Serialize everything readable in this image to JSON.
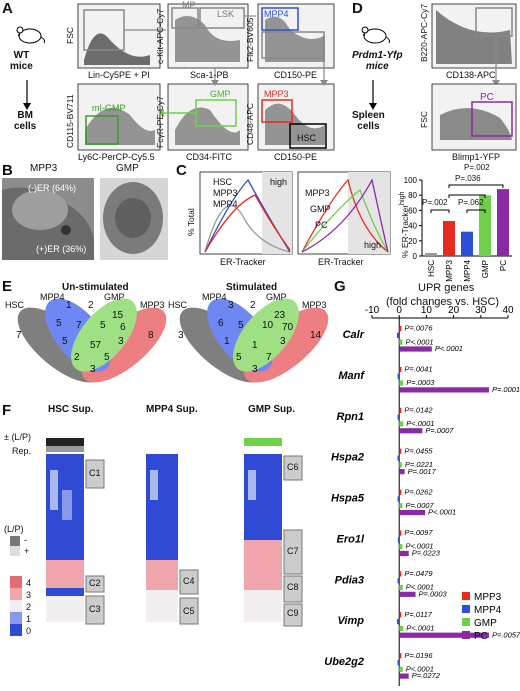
{
  "panels": {
    "A": {
      "label": "A",
      "organism": "WT\nmice",
      "source": "BM\ncells",
      "gates": {
        "lsk": "LSK",
        "mp": "MP",
        "mpp4": "MPP4",
        "mpp3": "MPP3",
        "hsc": "HSC",
        "gmp": "GMP",
        "migmp": "mI-GMP"
      },
      "axes": {
        "p1_x": "Lin-Cy5PE + PI",
        "p1_y": "FSC",
        "p2_x": "Sca-1-PB",
        "p2_y": "c-Kit-APC-Cy7",
        "p3_x": "CD150-PE",
        "p3_y": "Flk2-BV605",
        "p4_x": "CD150-PE",
        "p4_y": "CD48-APC",
        "p5_x": "CD34-FITC",
        "p5_y": "FcγR-PE-Cy7",
        "p6_x": "Ly6C-PerCP-Cy5.5",
        "p6_y": "CD115-BV711"
      }
    },
    "B": {
      "label": "B",
      "left_title": "MPP3",
      "right_title": "GMP",
      "er_minus": "(-)ER (64%)",
      "er_plus": "(+)ER (36%)"
    },
    "C": {
      "label": "C",
      "left_legend": [
        "HSC",
        "MPP3",
        "MPP4"
      ],
      "right_legend": [
        "MPP3",
        "GMP",
        "PC"
      ],
      "high": "high",
      "xlabel": "ER-Tracker",
      "ylabel": "% Total",
      "bar_ylabel": "% ER-Tracker",
      "bar_ylabel_sup": "high",
      "pvals": [
        "P=.002",
        "P=.036",
        "P=.002",
        "P=.062"
      ],
      "colors": {
        "HSC": "#999999",
        "MPP3": "#e8291f",
        "MPP4": "#2c4fd8",
        "GMP": "#6fd04a",
        "PC": "#8a2aa4"
      }
    },
    "D": {
      "label": "D",
      "organism": "Prdm1-Yfp\nmice",
      "source": "Spleen\ncells",
      "p1_x": "CD138-APC",
      "p1_y": "B220-APC-Cy7",
      "p2_x": "Blimp1-YFP",
      "p2_y": "FSC",
      "gate": "PC"
    },
    "E": {
      "label": "E",
      "left_title": "Un-stimulated",
      "right_title": "Stimulated",
      "sets": [
        "HSC",
        "MPP4",
        "GMP",
        "MPP3"
      ],
      "left_counts": [
        "7",
        "1",
        "2",
        "15",
        "8",
        "5",
        "7",
        "5",
        "6",
        "5",
        "57",
        "3",
        "2",
        "5",
        "3"
      ],
      "right_counts": [
        "3",
        "3",
        "2",
        "23",
        "14",
        "6",
        "5",
        "10",
        "70",
        "1",
        "1",
        "3",
        "5",
        "7",
        "3"
      ]
    },
    "F": {
      "label": "F",
      "titles": [
        "HSC Sup.",
        "MPP4 Sup.",
        "GMP Sup."
      ],
      "rowlabels": [
        "± (L/P)",
        "Rep."
      ],
      "legend_title": "(L/P)",
      "legend_signs": [
        "-",
        "+"
      ],
      "scale": [
        "4",
        "3",
        "2",
        "1",
        "0"
      ],
      "clusters": [
        "C1",
        "C2",
        "C3",
        "C4",
        "C5",
        "C6",
        "C7",
        "C8",
        "C9"
      ]
    },
    "G": {
      "label": "G",
      "title": "UPR genes",
      "subtitle": "(fold changes vs. HSC)",
      "ticks": [
        "-10",
        "0",
        "10",
        "20",
        "30",
        "40"
      ],
      "legend": [
        "MPP3",
        "MPP4",
        "GMP",
        "PC"
      ]
    }
  },
  "chart_data": [
    {
      "type": "bar",
      "title": "",
      "ylabel": "% ER-Tracker high",
      "categories": [
        "HSC",
        "MPP3",
        "MPP4",
        "GMP",
        "PC"
      ],
      "values": [
        4,
        46,
        32,
        80,
        88
      ],
      "ylim": [
        0,
        100
      ],
      "yticks": [
        "0",
        "20",
        "40",
        "60",
        "80",
        "100"
      ]
    },
    {
      "type": "bar",
      "orientation": "horizontal",
      "title": "UPR genes",
      "xlabel": "(fold changes vs. HSC)",
      "xlim": [
        -10,
        40
      ],
      "genes": [
        "Calr",
        "Manf",
        "Rpn1",
        "Hspa2",
        "Hspa5",
        "Ero1l",
        "Pdia3",
        "Vimp",
        "Ube2g2"
      ],
      "series": [
        {
          "name": "MPP3",
          "values": [
            0.8,
            0.8,
            0.8,
            0.8,
            0.8,
            0.8,
            0.8,
            0.8,
            0.8
          ],
          "pvals": [
            "P=.0076",
            "P=.0041",
            "P=.0142",
            "P=.0455",
            "P=.0262",
            "P=.0097",
            "P=.0479",
            "P=.0117",
            "P=.0196"
          ]
        },
        {
          "name": "MPP4",
          "values": [
            -0.8,
            -0.6,
            -0.6,
            -0.6,
            -0.6,
            -0.5,
            -0.6,
            -0.8,
            -0.6
          ],
          "pvals": [
            "",
            "",
            "",
            "",
            "",
            "",
            "",
            "",
            ""
          ]
        },
        {
          "name": "GMP",
          "values": [
            1.2,
            1.5,
            1.5,
            1.0,
            1.2,
            1.2,
            1.3,
            1.5,
            1.3
          ],
          "pvals": [
            "P<.0001",
            "P=.0003",
            "P<.0001",
            "P=.0221",
            "P=.0007",
            "P<.0001",
            "P<.0001",
            "P<.0001",
            "P<.0001"
          ]
        },
        {
          "name": "PC",
          "values": [
            12.0,
            33.0,
            8.5,
            2.0,
            9.5,
            3.5,
            6.0,
            33.0,
            3.5
          ],
          "pvals": [
            "P<.0001",
            "P=.0001",
            "P=.0007",
            "P=.0017",
            "P<.0001",
            "P=.0223",
            "P=.0003",
            "P=.0057",
            "P=.0272"
          ]
        }
      ],
      "colors": {
        "MPP3": "#e8291f",
        "MPP4": "#2c4fd8",
        "GMP": "#6fd04a",
        "PC": "#8a2aa4"
      }
    }
  ]
}
